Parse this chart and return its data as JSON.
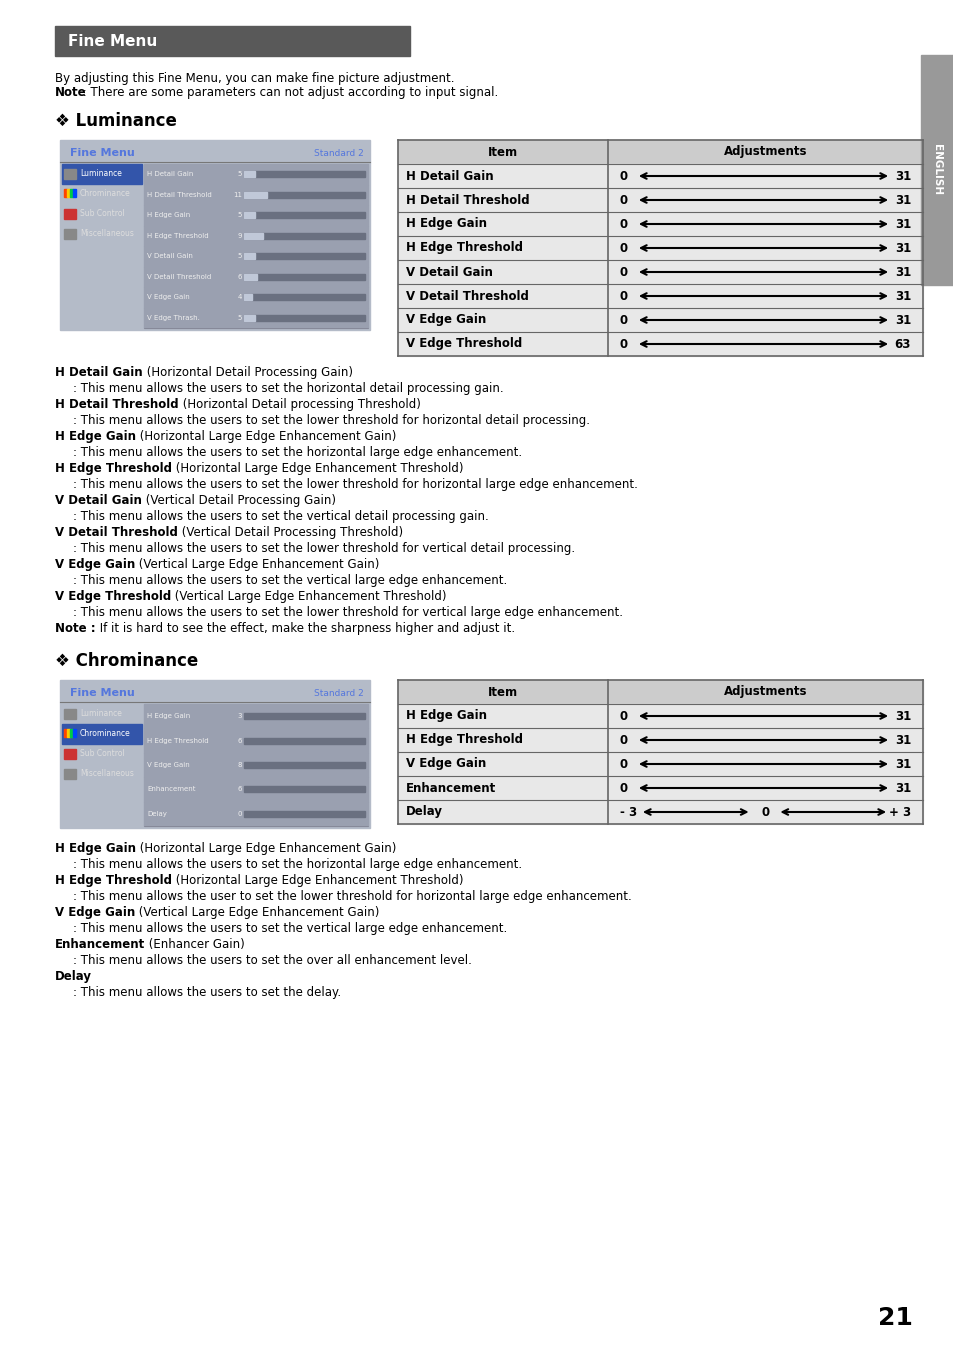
{
  "page_bg": "#ffffff",
  "header_box_color": "#595959",
  "header_text": "Fine Menu",
  "header_text_color": "#ffffff",
  "intro_line1": "By adjusting this Fine Menu, you can make fine picture adjustment.",
  "intro_note_bold": "Note",
  "intro_note_rest": " : There are some parameters can not adjust according to input signal.",
  "section1_title": "❖ Luminance",
  "section2_title": "❖ Chrominance",
  "lum_table_rows": [
    [
      "H Detail Gain",
      "0",
      "31"
    ],
    [
      "H Detail Threshold",
      "0",
      "31"
    ],
    [
      "H Edge Gain",
      "0",
      "31"
    ],
    [
      "H Edge Threshold",
      "0",
      "31"
    ],
    [
      "V Detail Gain",
      "0",
      "31"
    ],
    [
      "V Detail Threshold",
      "0",
      "31"
    ],
    [
      "V Edge Gain",
      "0",
      "31"
    ],
    [
      "V Edge Threshold",
      "0",
      "63"
    ]
  ],
  "chrom_table_rows": [
    [
      "H Edge Gain",
      "0",
      "31",
      "normal"
    ],
    [
      "H Edge Threshold",
      "0",
      "31",
      "normal"
    ],
    [
      "V Edge Gain",
      "0",
      "31",
      "normal"
    ],
    [
      "Enhancement",
      "0",
      "31",
      "normal"
    ],
    [
      "Delay",
      "- 3",
      "+ 3",
      "center"
    ]
  ],
  "lum_desc": [
    {
      "bold": "H Detail Gain",
      "normal": " (Horizontal Detail Processing Gain)",
      "indent": ": This menu allows the users to set the horizontal detail processing gain."
    },
    {
      "bold": "H Detail Threshold",
      "normal": " (Horizontal Detail processing Threshold)",
      "indent": ": This menu allows the users to set the lower threshold for horizontal detail processing."
    },
    {
      "bold": "H Edge Gain",
      "normal": " (Horizontal Large Edge Enhancement Gain)",
      "indent": ": This menu allows the users to set the horizontal large edge enhancement."
    },
    {
      "bold": "H Edge Threshold",
      "normal": " (Horizontal Large Edge Enhancement Threshold)",
      "indent": ": This menu allows the users to set the lower threshold for horizontal large edge enhancement."
    },
    {
      "bold": "V Detail Gain",
      "normal": " (Vertical Detail Processing Gain)",
      "indent": ": This menu allows the users to set the vertical detail processing gain."
    },
    {
      "bold": "V Detail Threshold",
      "normal": " (Vertical Detail Processing Threshold)",
      "indent": ": This menu allows the users to set the lower threshold for vertical detail processing."
    },
    {
      "bold": "V Edge Gain",
      "normal": " (Vertical Large Edge Enhancement Gain)",
      "indent": ": This menu allows the users to set the vertical large edge enhancement."
    },
    {
      "bold": "V Edge Threshold",
      "normal": " (Vertical Large Edge Enhancement Threshold)",
      "indent": ": This menu allows the users to set the lower threshold for vertical large edge enhancement."
    },
    {
      "bold": "Note :",
      "normal": " If it is hard to see the effect, make the sharpness higher and adjust it.",
      "indent": ""
    }
  ],
  "chrom_desc": [
    {
      "bold": "H Edge Gain",
      "normal": " (Horizontal Large Edge Enhancement Gain)",
      "indent": ": This menu allows the users to set the horizontal large edge enhancement."
    },
    {
      "bold": "H Edge Threshold",
      "normal": " (Horizontal Large Edge Enhancement Threshold)",
      "indent": ": This menu allows the user to set the lower threshold for horizontal large edge enhancement."
    },
    {
      "bold": "V Edge Gain",
      "normal": " (Vertical Large Edge Enhancement Gain)",
      "indent": ": This menu allows the users to set the vertical large edge enhancement."
    },
    {
      "bold": "Enhancement",
      "normal": " (Enhancer Gain)",
      "indent": ": This menu allows the users to set the over all enhancement level."
    },
    {
      "bold": "Delay",
      "normal": "",
      "indent": ": This menu allows the users to set the delay."
    }
  ],
  "page_number": "21",
  "screen_bg": "#b4bbc8",
  "screen_title_color": "#5577dd",
  "screen_selected_bg": "#3355aa",
  "screen_selected_text": "#ffffff",
  "screen_text_color": "#cccccc",
  "table_header_bg": "#cccccc",
  "table_row_bg": "#e8e8e8",
  "table_border": "#666666",
  "sidebar_color": "#999999"
}
